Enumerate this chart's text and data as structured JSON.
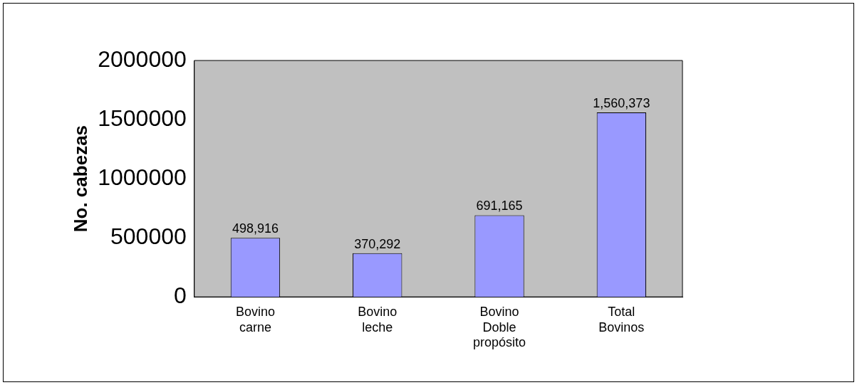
{
  "chart_data": {
    "type": "bar",
    "ylabel": "No. cabezas",
    "categories": [
      "Bovino\ncarne",
      "Bovino\nleche",
      "Bovino\nDoble\npropósito",
      "Total\nBovinos"
    ],
    "values": [
      498916,
      370292,
      691165,
      1560373
    ],
    "value_labels": [
      "498,916",
      "370,292",
      "691,165",
      "1,560,373"
    ],
    "color": "#9999ff",
    "ylim": [
      0,
      2000000
    ],
    "yticks": [
      0,
      500000,
      1000000,
      1500000,
      2000000
    ],
    "grid": false,
    "legend": false
  }
}
